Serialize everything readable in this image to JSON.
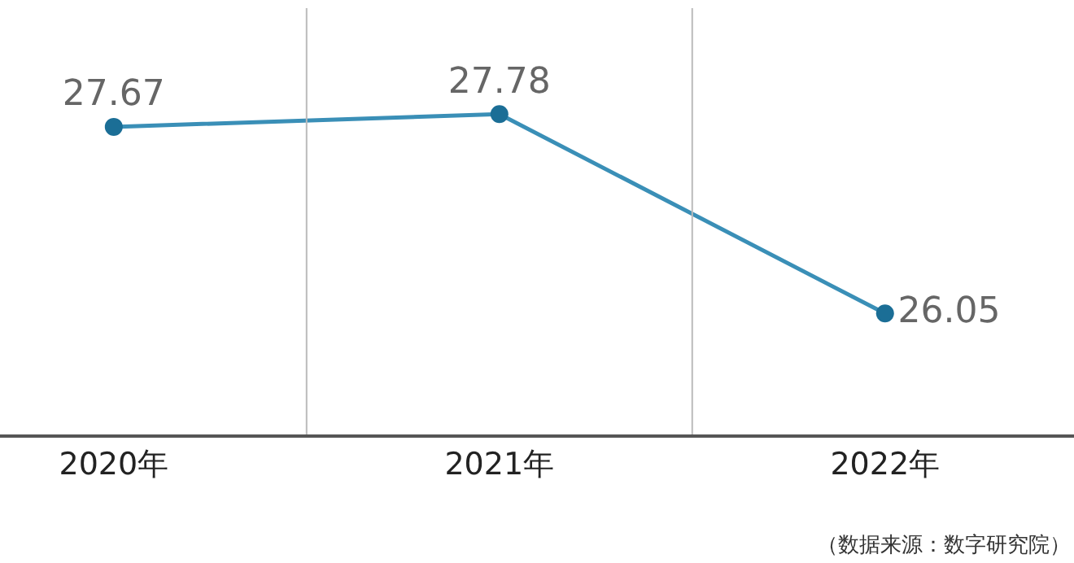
{
  "chart_data": {
    "type": "line",
    "categories": [
      "2020年",
      "2021年",
      "2022年"
    ],
    "series": [
      {
        "color": "#3a8fb7",
        "values": [
          27.67,
          27.78,
          26.05
        ]
      }
    ],
    "ylim": [
      25.0,
      28.7
    ],
    "data_labels": true,
    "marker": "circle",
    "line_style": "solid",
    "grid": false,
    "tick_labels": "x",
    "annotations": [
      "（数据来源：数字研究院）"
    ]
  }
}
